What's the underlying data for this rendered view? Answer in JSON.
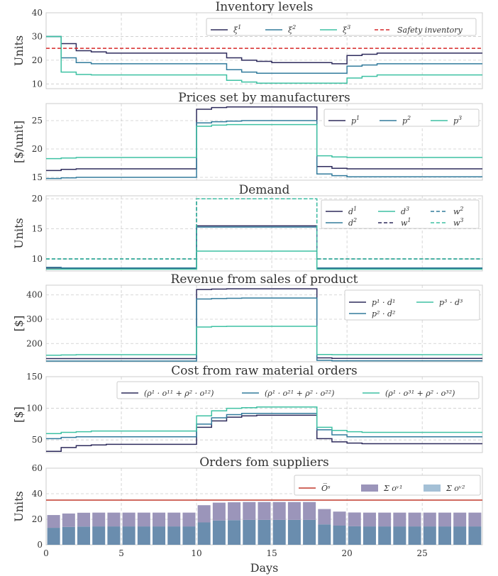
{
  "colors": {
    "c1": "#2e2b5c",
    "c2": "#327b9c",
    "c3": "#3ec1a3",
    "safety": "#d62728",
    "omax": "#c0392b",
    "bar_o1": "#9b95ba",
    "bar_o2": "#6a8dae",
    "bar_o2_legend": "#a4c0d6"
  },
  "x_axis": {
    "label": "Days",
    "ticks": [
      "0",
      "5",
      "10",
      "15",
      "20",
      "25"
    ]
  },
  "chart_data": [
    {
      "id": "inventory",
      "type": "line",
      "title": "Inventory levels",
      "ylabel": "Units",
      "ylim": [
        8,
        40
      ],
      "yticks": [
        10,
        20,
        30,
        40
      ],
      "xlim": [
        0,
        29
      ],
      "step": true,
      "legend_cols": 4,
      "series": [
        {
          "label": "ξ",
          "sup": "1",
          "color_key": "c1",
          "dash": false,
          "values": [
            30,
            27,
            24,
            23.5,
            23,
            23,
            23,
            23,
            23,
            23,
            23,
            23,
            21,
            20,
            19.5,
            19,
            19,
            19,
            19,
            18.5,
            22,
            22.5,
            23,
            23,
            23,
            23,
            23,
            23,
            23
          ]
        },
        {
          "label": "ξ",
          "sup": "2",
          "color_key": "c2",
          "dash": false,
          "values": [
            30,
            21,
            19,
            18.5,
            18.5,
            18.5,
            18.5,
            18.5,
            18.5,
            18.5,
            18.5,
            18.5,
            16,
            15,
            14.5,
            14.5,
            14.5,
            14.5,
            14.5,
            14.5,
            17.5,
            18,
            18.5,
            18.5,
            18.5,
            18.5,
            18.5,
            18.5,
            18.5
          ]
        },
        {
          "label": "ξ",
          "sup": "3",
          "color_key": "c3",
          "dash": false,
          "values": [
            30,
            15,
            14,
            13.8,
            13.8,
            13.8,
            13.8,
            13.8,
            13.8,
            13.8,
            13.8,
            13.8,
            11.5,
            10.8,
            10.3,
            10.3,
            10.3,
            10.3,
            10.3,
            10.3,
            12.5,
            13.2,
            13.8,
            13.8,
            13.8,
            13.8,
            13.8,
            13.8,
            13.8
          ]
        },
        {
          "label": "Safety inventory",
          "sup": "",
          "color_key": "safety",
          "dash": true,
          "constant": 25
        }
      ]
    },
    {
      "id": "prices",
      "type": "line",
      "title": "Prices set by manufacturers",
      "ylabel": "[$/unit]",
      "ylim": [
        14.5,
        28
      ],
      "yticks": [
        15,
        20,
        25
      ],
      "xlim": [
        0,
        29
      ],
      "step": true,
      "legend_cols": 3,
      "series": [
        {
          "label": "p",
          "sup": "1",
          "color_key": "c1",
          "dash": false,
          "values": [
            16.2,
            16.4,
            16.5,
            16.5,
            16.5,
            16.5,
            16.5,
            16.5,
            16.5,
            16.5,
            27.0,
            27.3,
            27.4,
            27.4,
            27.4,
            27.4,
            27.4,
            27.4,
            16.9,
            16.6,
            16.5,
            16.5,
            16.5,
            16.5,
            16.5,
            16.5,
            16.5,
            16.5,
            16.5
          ]
        },
        {
          "label": "p",
          "sup": "2",
          "color_key": "c2",
          "dash": false,
          "values": [
            14.8,
            14.9,
            15.0,
            15.0,
            15.0,
            15.0,
            15.0,
            15.0,
            15.0,
            15.0,
            24.6,
            24.8,
            24.9,
            25.0,
            25.0,
            25.0,
            25.0,
            25.0,
            15.6,
            15.3,
            15.1,
            15.1,
            15.1,
            15.1,
            15.1,
            15.1,
            15.1,
            15.1,
            15.1
          ]
        },
        {
          "label": "p",
          "sup": "3",
          "color_key": "c3",
          "dash": false,
          "values": [
            18.3,
            18.4,
            18.5,
            18.5,
            18.5,
            18.5,
            18.5,
            18.5,
            18.5,
            18.5,
            24.0,
            24.2,
            24.3,
            24.3,
            24.3,
            24.3,
            24.3,
            24.3,
            18.8,
            18.6,
            18.5,
            18.5,
            18.5,
            18.5,
            18.5,
            18.5,
            18.5,
            18.5,
            18.5
          ]
        }
      ]
    },
    {
      "id": "demand",
      "type": "line",
      "title": "Demand",
      "ylabel": "Units",
      "ylim": [
        8,
        20.5
      ],
      "yticks": [
        10,
        15,
        20
      ],
      "xlim": [
        0,
        29
      ],
      "step": true,
      "legend_cols": 3,
      "series": [
        {
          "label": "d",
          "sup": "1",
          "color_key": "c1",
          "dash": false,
          "values": [
            8.5,
            8.4,
            8.4,
            8.4,
            8.4,
            8.4,
            8.4,
            8.4,
            8.4,
            8.4,
            15.5,
            15.5,
            15.5,
            15.5,
            15.5,
            15.5,
            15.5,
            15.5,
            8.4,
            8.4,
            8.4,
            8.4,
            8.4,
            8.4,
            8.4,
            8.4,
            8.4,
            8.4,
            8.4
          ]
        },
        {
          "label": "d",
          "sup": "2",
          "color_key": "c2",
          "dash": false,
          "values": [
            8.6,
            8.5,
            8.5,
            8.5,
            8.5,
            8.5,
            8.5,
            8.5,
            8.5,
            8.5,
            15.3,
            15.3,
            15.3,
            15.3,
            15.3,
            15.3,
            15.3,
            15.3,
            8.5,
            8.5,
            8.5,
            8.5,
            8.5,
            8.5,
            8.5,
            8.5,
            8.5,
            8.5,
            8.5
          ]
        },
        {
          "label": "d",
          "sup": "3",
          "color_key": "c3",
          "dash": false,
          "values": [
            8.3,
            8.3,
            8.3,
            8.3,
            8.3,
            8.3,
            8.3,
            8.3,
            8.3,
            8.3,
            11.3,
            11.3,
            11.3,
            11.3,
            11.3,
            11.3,
            11.3,
            11.3,
            8.3,
            8.3,
            8.3,
            8.3,
            8.3,
            8.3,
            8.3,
            8.3,
            8.3,
            8.3,
            8.3
          ]
        },
        {
          "label": "w",
          "sup": "1",
          "color_key": "c1",
          "dash": true,
          "values": [
            10,
            10,
            10,
            10,
            10,
            10,
            10,
            10,
            10,
            10,
            20,
            20,
            20,
            20,
            20,
            20,
            20,
            20,
            10,
            10,
            10,
            10,
            10,
            10,
            10,
            10,
            10,
            10,
            10
          ]
        },
        {
          "label": "w",
          "sup": "2",
          "color_key": "c2",
          "dash": true,
          "values": [
            10,
            10,
            10,
            10,
            10,
            10,
            10,
            10,
            10,
            10,
            20,
            20,
            20,
            20,
            20,
            20,
            20,
            20,
            10,
            10,
            10,
            10,
            10,
            10,
            10,
            10,
            10,
            10,
            10
          ]
        },
        {
          "label": "w",
          "sup": "3",
          "color_key": "c3",
          "dash": true,
          "values": [
            10,
            10,
            10,
            10,
            10,
            10,
            10,
            10,
            10,
            10,
            20,
            20,
            20,
            20,
            20,
            20,
            20,
            20,
            10,
            10,
            10,
            10,
            10,
            10,
            10,
            10,
            10,
            10,
            10
          ]
        }
      ]
    },
    {
      "id": "revenue",
      "type": "line",
      "title": "Revenue from sales of product",
      "ylabel": "[$]",
      "ylim": [
        125,
        440
      ],
      "yticks": [
        200,
        300,
        400
      ],
      "xlim": [
        0,
        29
      ],
      "step": true,
      "legend_cols": 2,
      "series": [
        {
          "label": "p¹ · d¹",
          "sup": "",
          "color_key": "c1",
          "dash": false,
          "values": [
            138,
            138,
            138,
            138,
            138,
            138,
            138,
            138,
            138,
            138,
            422,
            424,
            425,
            425,
            425,
            425,
            425,
            425,
            141,
            139,
            139,
            139,
            139,
            139,
            139,
            139,
            139,
            139,
            139
          ]
        },
        {
          "label": "p² · d²",
          "sup": "",
          "color_key": "c2",
          "dash": false,
          "values": [
            128,
            128,
            128,
            128,
            128,
            128,
            128,
            128,
            128,
            128,
            383,
            385,
            386,
            387,
            387,
            387,
            387,
            387,
            131,
            129,
            129,
            129,
            129,
            129,
            129,
            129,
            129,
            129,
            129
          ]
        },
        {
          "label": "p³ · d³",
          "sup": "",
          "color_key": "c3",
          "dash": false,
          "values": [
            152,
            153,
            154,
            154,
            154,
            154,
            154,
            154,
            154,
            154,
            268,
            270,
            271,
            271,
            271,
            271,
            271,
            271,
            155,
            154,
            154,
            154,
            154,
            154,
            154,
            154,
            154,
            154,
            154
          ]
        }
      ]
    },
    {
      "id": "cost",
      "type": "line",
      "title": "Cost from raw material orders",
      "ylabel": "[$]",
      "ylim": [
        30,
        150
      ],
      "yticks": [
        50,
        100,
        150
      ],
      "xlim": [
        0,
        29
      ],
      "step": true,
      "legend_cols": 3,
      "series": [
        {
          "label": "(ρ¹ · o¹¹ + ρ² · o¹²)",
          "sup": "",
          "color_key": "c1",
          "dash": false,
          "values": [
            32,
            38,
            41,
            42,
            43,
            43,
            43,
            43,
            43,
            43,
            70,
            80,
            86,
            88,
            89,
            89,
            89,
            89,
            52,
            47,
            45,
            44,
            44,
            44,
            44,
            44,
            44,
            44,
            44
          ]
        },
        {
          "label": "(ρ¹ · o²¹ + ρ² · o²²)",
          "sup": "",
          "color_key": "c2",
          "dash": false,
          "values": [
            52,
            54,
            55,
            55,
            55,
            55,
            55,
            55,
            55,
            55,
            75,
            85,
            90,
            92,
            92,
            92,
            92,
            92,
            66,
            58,
            55,
            55,
            55,
            55,
            55,
            55,
            55,
            55,
            55
          ]
        },
        {
          "label": "(ρ¹ · o³¹ + ρ² · o³²)",
          "sup": "",
          "color_key": "c3",
          "dash": false,
          "values": [
            60,
            62,
            63,
            64,
            64,
            64,
            64,
            64,
            64,
            64,
            88,
            96,
            100,
            101,
            102,
            102,
            102,
            102,
            70,
            65,
            63,
            62,
            62,
            62,
            62,
            62,
            62,
            62,
            62
          ]
        }
      ]
    },
    {
      "id": "orders",
      "type": "bar",
      "title": "Orders fom suppliers",
      "ylabel": "Units",
      "ylim": [
        0,
        60
      ],
      "yticks": [
        0,
        20,
        40,
        60
      ],
      "xlim": [
        0,
        29
      ],
      "stacked": true,
      "legend_cols": 3,
      "limit": {
        "label": "O̅ˢ",
        "value": 35,
        "color_key": "omax"
      },
      "x": [
        0,
        1,
        2,
        3,
        4,
        5,
        6,
        7,
        8,
        9,
        10,
        11,
        12,
        13,
        14,
        15,
        16,
        17,
        18,
        19,
        20,
        21,
        22,
        23,
        24,
        25,
        26,
        27,
        28
      ],
      "series": [
        {
          "label": "Σ oᵛ¹",
          "color_key": "bar_o1",
          "values": [
            10,
            10.5,
            10.8,
            10.8,
            10.8,
            10.8,
            10.8,
            10.8,
            10.8,
            10.8,
            13.5,
            14,
            14,
            14,
            14,
            14,
            14,
            14,
            12,
            11,
            10.8,
            10.8,
            10.8,
            10.8,
            10.8,
            10.8,
            10.8,
            10.8,
            10.8
          ]
        },
        {
          "label": "Σ oᵛ²",
          "color_key": "bar_o2",
          "values": [
            13.3,
            14,
            14.3,
            14.4,
            14.4,
            14.4,
            14.4,
            14.4,
            14.4,
            14.4,
            17.5,
            19,
            19.3,
            19.5,
            19.5,
            19.5,
            19.5,
            19.5,
            16,
            15,
            14.5,
            14.4,
            14.4,
            14.4,
            14.4,
            14.4,
            14.4,
            14.4,
            14.4
          ]
        }
      ]
    }
  ]
}
